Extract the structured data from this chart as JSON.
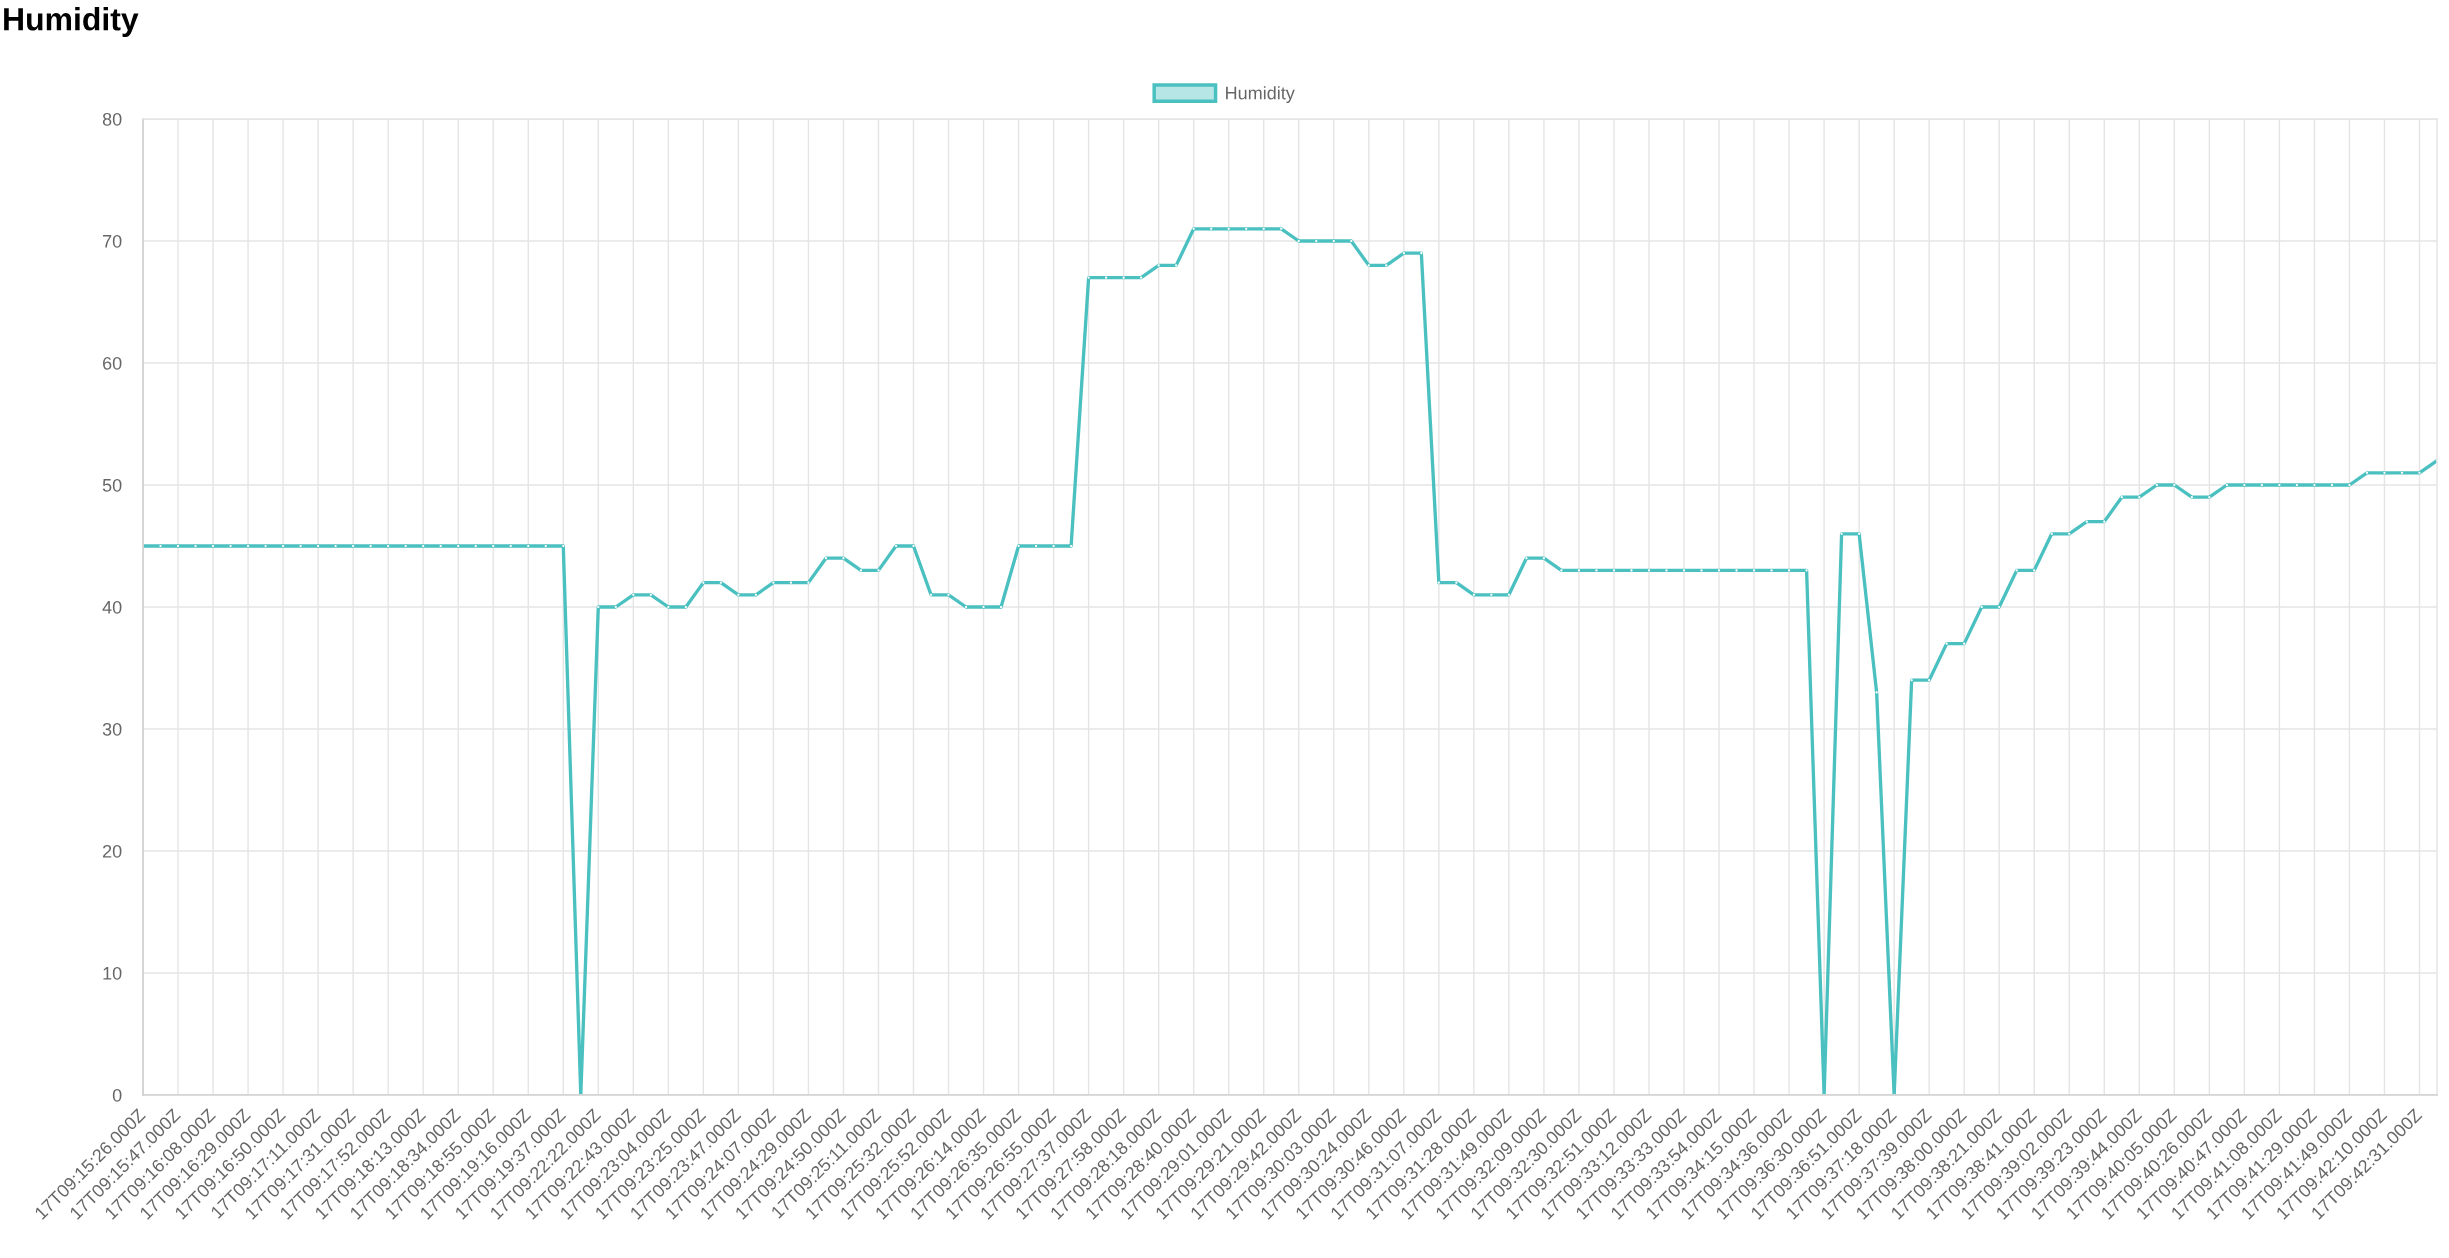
{
  "chart_data": {
    "type": "line",
    "title": "Humidity",
    "categories": [
      "17T09:15:26.000Z",
      null,
      "17T09:15:47.000Z",
      null,
      "17T09:16:08.000Z",
      null,
      "17T09:16:29.000Z",
      null,
      "17T09:16:50.000Z",
      null,
      "17T09:17:11.000Z",
      null,
      "17T09:17:31.000Z",
      null,
      "17T09:17:52.000Z",
      null,
      "17T09:18:13.000Z",
      null,
      "17T09:18:34.000Z",
      null,
      "17T09:18:55.000Z",
      null,
      "17T09:19:16.000Z",
      null,
      "17T09:19:37.000Z",
      null,
      "17T09:22:22.000Z",
      null,
      "17T09:22:43.000Z",
      null,
      "17T09:23:04.000Z",
      null,
      "17T09:23:25.000Z",
      null,
      "17T09:23:47.000Z",
      null,
      "17T09:24:07.000Z",
      null,
      "17T09:24:29.000Z",
      null,
      "17T09:24:50.000Z",
      null,
      "17T09:25:11.000Z",
      null,
      "17T09:25:32.000Z",
      null,
      "17T09:25:52.000Z",
      null,
      "17T09:26:14.000Z",
      null,
      "17T09:26:35.000Z",
      null,
      "17T09:26:55.000Z",
      null,
      "17T09:27:37.000Z",
      null,
      "17T09:27:58.000Z",
      null,
      "17T09:28:18.000Z",
      null,
      "17T09:28:40.000Z",
      null,
      "17T09:29:01.000Z",
      null,
      "17T09:29:21.000Z",
      null,
      "17T09:29:42.000Z",
      null,
      "17T09:30:03.000Z",
      null,
      "17T09:30:24.000Z",
      null,
      "17T09:30:46.000Z",
      null,
      "17T09:31:07.000Z",
      null,
      "17T09:31:28.000Z",
      null,
      "17T09:31:49.000Z",
      null,
      "17T09:32:09.000Z",
      null,
      "17T09:32:30.000Z",
      null,
      "17T09:32:51.000Z",
      null,
      "17T09:33:12.000Z",
      null,
      "17T09:33:33.000Z",
      null,
      "17T09:33:54.000Z",
      null,
      "17T09:34:15.000Z",
      null,
      "17T09:34:36.000Z",
      null,
      "17T09:36:30.000Z",
      null,
      "17T09:36:51.000Z",
      null,
      "17T09:37:18.000Z",
      null,
      "17T09:37:39.000Z",
      null,
      "17T09:38:00.000Z",
      null,
      "17T09:38:21.000Z",
      null,
      "17T09:38:41.000Z",
      null,
      "17T09:39:02.000Z",
      null,
      "17T09:39:23.000Z",
      null,
      "17T09:39:44.000Z",
      null,
      "17T09:40:05.000Z",
      null,
      "17T09:40:26.000Z",
      null,
      "17T09:40:47.000Z",
      null,
      "17T09:41:08.000Z",
      null,
      "17T09:41:29.000Z",
      null,
      "17T09:41:49.000Z",
      null,
      "17T09:42:10.000Z",
      null,
      "17T09:42:31.000Z",
      null
    ],
    "series": [
      {
        "name": "Humidity",
        "color": "#4bc0c0",
        "values": [
          45,
          45,
          45,
          45,
          45,
          45,
          45,
          45,
          45,
          45,
          45,
          45,
          45,
          45,
          45,
          45,
          45,
          45,
          45,
          45,
          45,
          45,
          45,
          45,
          45,
          0,
          40,
          40,
          41,
          41,
          40,
          40,
          42,
          42,
          41,
          41,
          42,
          42,
          42,
          44,
          44,
          43,
          43,
          45,
          45,
          41,
          41,
          40,
          40,
          40,
          45,
          45,
          45,
          45,
          67,
          67,
          67,
          67,
          68,
          68,
          71,
          71,
          71,
          71,
          71,
          71,
          70,
          70,
          70,
          70,
          68,
          68,
          69,
          69,
          42,
          42,
          41,
          41,
          41,
          44,
          44,
          43,
          43,
          43,
          43,
          43,
          43,
          43,
          43,
          43,
          43,
          43,
          43,
          43,
          43,
          43,
          0,
          46,
          46,
          33,
          0,
          34,
          34,
          37,
          37,
          40,
          40,
          43,
          43,
          46,
          46,
          47,
          47,
          49,
          49,
          50,
          50,
          49,
          49,
          50,
          50,
          50,
          50,
          50,
          50,
          50,
          50,
          51,
          51,
          51,
          51,
          52
        ]
      }
    ],
    "ylim": [
      0,
      80
    ],
    "yticks": [
      0,
      10,
      20,
      30,
      40,
      50,
      60,
      70,
      80
    ],
    "grid": true,
    "legend": "top",
    "marker": "circle",
    "line_style": "solid"
  }
}
